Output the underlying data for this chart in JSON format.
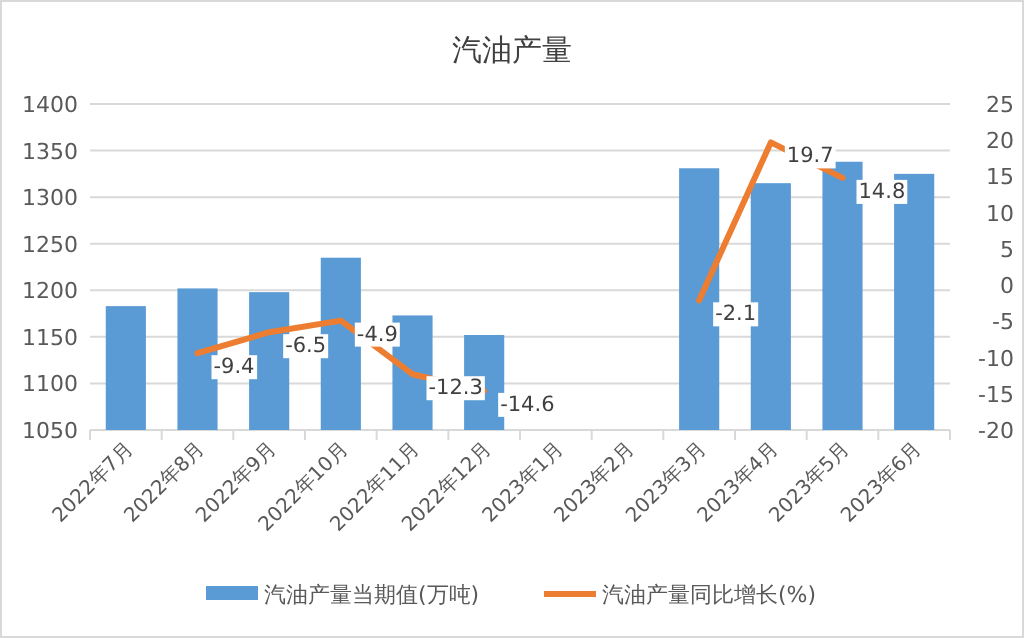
{
  "chart_data": {
    "type": "bar",
    "title": "汽油产量",
    "categories": [
      "2022年7月",
      "2022年8月",
      "2022年9月",
      "2022年10月",
      "2022年11月",
      "2022年12月",
      "2023年1月",
      "2023年2月",
      "2023年3月",
      "2023年4月",
      "2023年5月",
      "2023年6月"
    ],
    "series": [
      {
        "name": "汽油产量当期值(万吨)",
        "color": "#5b9bd5",
        "values": [
          1183,
          1202,
          1198,
          1235,
          1173,
          1152,
          null,
          null,
          1331,
          1315,
          1338,
          1325
        ]
      },
      {
        "name": "汽油产量同比增长(%)",
        "type": "line",
        "axis": "y2",
        "color": "#ed7d31",
        "values": [
          null,
          -9.4,
          -6.5,
          -4.9,
          -12.3,
          -14.6,
          null,
          null,
          -2.1,
          19.7,
          14.8,
          null
        ],
        "value_labels": [
          null,
          "-9.4",
          "-6.5",
          "-4.9",
          "-12.3",
          "-14.6",
          null,
          null,
          "-2.1",
          "19.7",
          "14.8",
          null
        ]
      }
    ],
    "ylim": [
      1050,
      1400
    ],
    "yticks": [
      1050,
      1100,
      1150,
      1200,
      1250,
      1300,
      1350,
      1400
    ],
    "y2lim": [
      -20,
      25
    ],
    "y2ticks": [
      -20,
      -15,
      -10,
      -5,
      0,
      5,
      10,
      15,
      20,
      25
    ],
    "grid": "y",
    "legend": "bottom"
  }
}
